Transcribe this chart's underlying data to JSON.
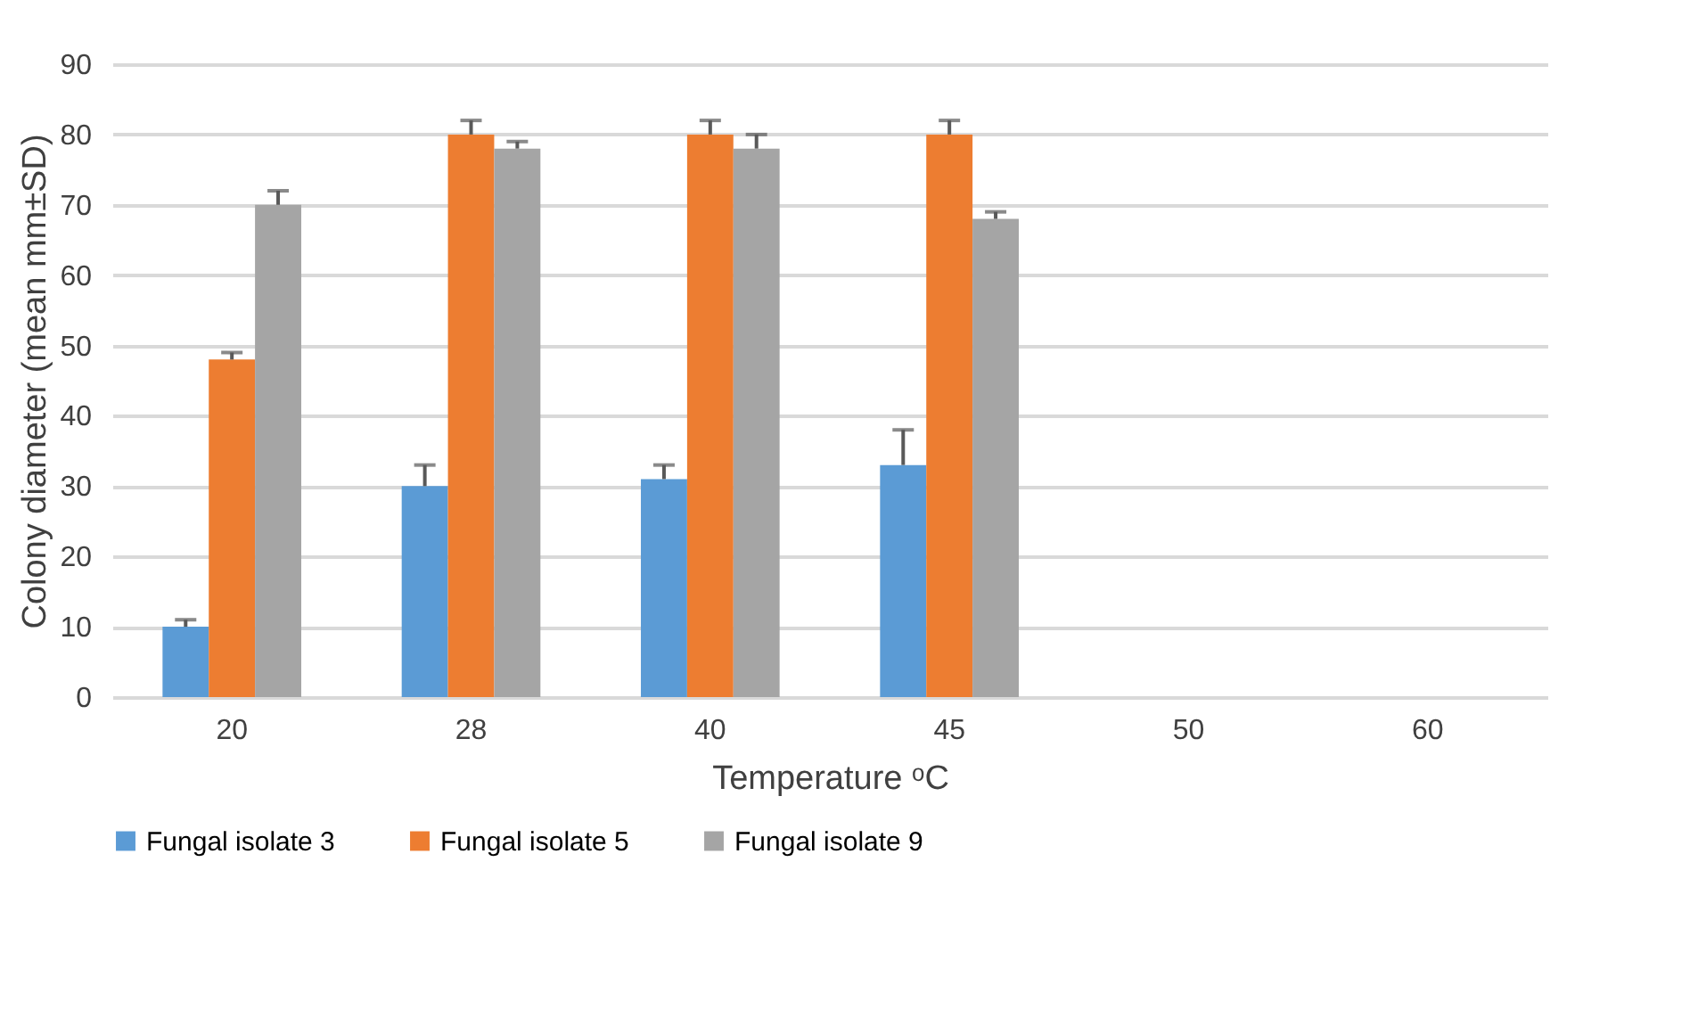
{
  "chart_data": {
    "type": "bar",
    "xlabel": "Temperature ᵒC",
    "ylabel": "Colony diameter (mean mm±SD)",
    "categories": [
      "20",
      "28",
      "40",
      "45",
      "50",
      "60"
    ],
    "series": [
      {
        "name": "Fungal isolate 3",
        "color": "#5b9bd5",
        "values": [
          10,
          30,
          31,
          33,
          0,
          0
        ],
        "errors": [
          [
            10,
            11
          ],
          [
            30,
            33
          ],
          [
            31,
            33
          ],
          [
            33,
            38
          ],
          null,
          null
        ]
      },
      {
        "name": "Fungal isolate 5",
        "color": "#ed7d31",
        "values": [
          48,
          80,
          80,
          80,
          0,
          0
        ],
        "errors": [
          [
            48,
            49
          ],
          [
            80,
            82
          ],
          [
            80,
            82
          ],
          [
            80,
            82
          ],
          null,
          null
        ]
      },
      {
        "name": "Fungal isolate 9",
        "color": "#a5a5a5",
        "values": [
          70,
          78,
          78,
          68,
          0,
          0
        ],
        "errors": [
          [
            70,
            72
          ],
          [
            78,
            79
          ],
          [
            78,
            80
          ],
          [
            68,
            69
          ],
          null,
          null
        ]
      }
    ],
    "ylim": [
      0,
      90
    ],
    "yticks": [
      0,
      10,
      20,
      30,
      40,
      50,
      60,
      70,
      80,
      90
    ],
    "grid": "y",
    "legend": "bottom"
  }
}
